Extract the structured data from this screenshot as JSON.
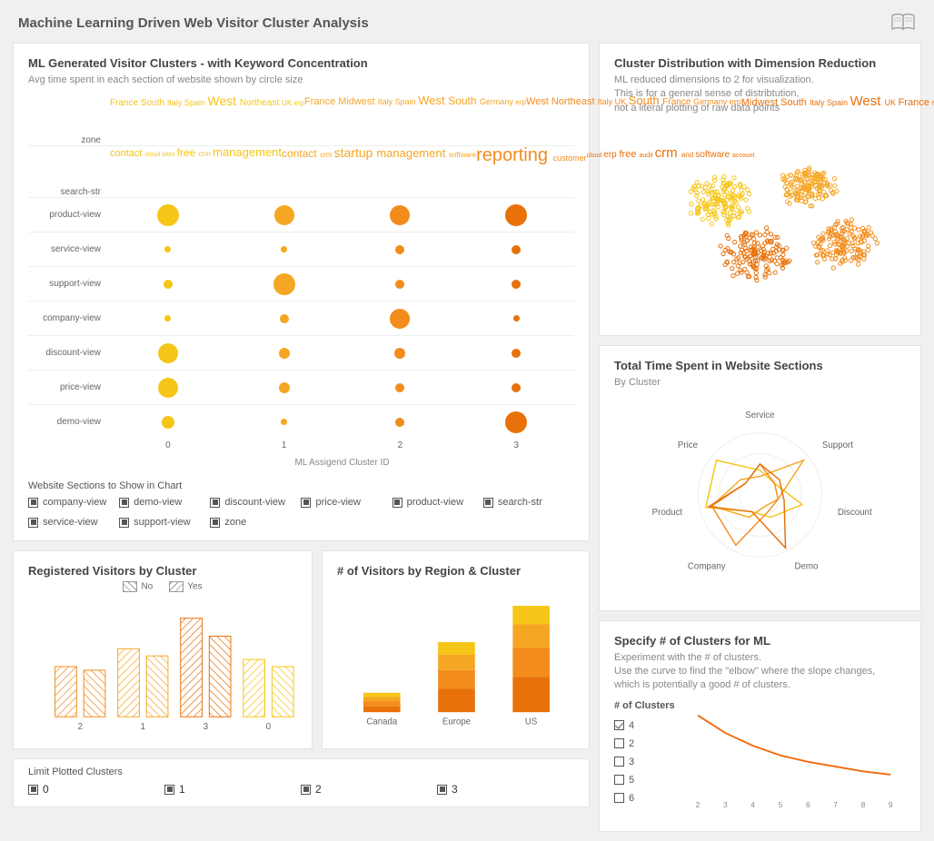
{
  "page": {
    "title": "Machine Learning Driven Web Visitor Cluster Analysis"
  },
  "colors": {
    "cluster": [
      "#f5c518",
      "#f5a623",
      "#f28c1b",
      "#e8710a"
    ],
    "grid": "#e0e0e0",
    "text": "#666666"
  },
  "bubble": {
    "title": "ML Generated Visitor Clusters - with Keyword Concentration",
    "subtitle": "Avg time spent in each section of website shown by circle size",
    "cluster_ids": [
      "0",
      "1",
      "2",
      "3"
    ],
    "axis_label": "ML Assigend Cluster ID",
    "word_rows": [
      {
        "label": "zone",
        "clouds": [
          [
            [
              "France",
              10
            ],
            [
              "South",
              10
            ],
            [
              "Italy",
              9
            ],
            [
              "Spain",
              9
            ],
            [
              "West",
              14
            ],
            [
              "Northeast",
              10
            ],
            [
              "UK",
              8
            ],
            [
              "erp",
              8
            ],
            [
              "contact",
              11
            ],
            [
              "cloud",
              7
            ],
            [
              "sites",
              7
            ],
            [
              "free",
              12
            ],
            [
              "crm",
              8
            ],
            [
              "management",
              13
            ]
          ],
          [
            [
              "France",
              11
            ],
            [
              "Midwest",
              11
            ],
            [
              "Italy",
              9
            ],
            [
              "Spain",
              9
            ],
            [
              "West",
              13
            ],
            [
              "South",
              12
            ],
            [
              "Germany",
              9
            ],
            [
              "erp",
              8
            ],
            [
              "contact",
              12
            ],
            [
              "crm",
              8
            ],
            [
              "startup",
              14
            ],
            [
              "management",
              13
            ],
            [
              "software",
              8
            ]
          ],
          [
            [
              "West",
              11
            ],
            [
              "Northeast",
              11
            ],
            [
              "Italy",
              9
            ],
            [
              "UK",
              9
            ],
            [
              "South",
              13
            ],
            [
              "France",
              10
            ],
            [
              "Germany",
              9
            ],
            [
              "erp",
              9
            ],
            [
              "reporting",
              20
            ],
            [
              "customer",
              9
            ]
          ],
          [
            [
              "Midwest",
              11
            ],
            [
              "South",
              11
            ],
            [
              "Italy",
              9
            ],
            [
              "Spain",
              9
            ],
            [
              "West",
              15
            ],
            [
              "UK",
              9
            ],
            [
              "France",
              11
            ],
            [
              "Northeast",
              7
            ],
            [
              "cloud",
              7
            ],
            [
              "erp",
              10
            ],
            [
              "free",
              11
            ],
            [
              "audit",
              7
            ],
            [
              "crm",
              15
            ],
            [
              "and",
              8
            ],
            [
              "software",
              10
            ],
            [
              "account",
              7
            ]
          ]
        ]
      },
      {
        "label": "search-str",
        "clouds": []
      }
    ],
    "rows": [
      {
        "label": "product-view",
        "sizes": [
          24,
          22,
          22,
          24
        ]
      },
      {
        "label": "service-view",
        "sizes": [
          7,
          7,
          10,
          10
        ]
      },
      {
        "label": "support-view",
        "sizes": [
          10,
          24,
          10,
          10
        ]
      },
      {
        "label": "company-view",
        "sizes": [
          7,
          10,
          22,
          7
        ]
      },
      {
        "label": "discount-view",
        "sizes": [
          22,
          12,
          12,
          10
        ]
      },
      {
        "label": "price-view",
        "sizes": [
          22,
          12,
          10,
          10
        ]
      },
      {
        "label": "demo-view",
        "sizes": [
          14,
          7,
          10,
          24
        ]
      }
    ],
    "filter_title": "Website Sections to Show in Chart",
    "filters": [
      "company-view",
      "demo-view",
      "discount-view",
      "price-view",
      "product-view",
      "search-str",
      "service-view",
      "support-view",
      "zone"
    ]
  },
  "scatter": {
    "title": "Cluster Distribution with Dimension Reduction",
    "subtitle": "ML reduced dimensions to 2 for visualization.\nThis is for a general sense of distribtution,\nnot a literal plotting of raw data points",
    "n_per_cluster": 150,
    "centers": [
      [
        120,
        70
      ],
      [
        220,
        55
      ],
      [
        160,
        130
      ],
      [
        260,
        120
      ]
    ],
    "spread": [
      35,
      30,
      40,
      35
    ],
    "colors": [
      "#f5c518",
      "#f5a623",
      "#e8710a",
      "#f28c1b"
    ]
  },
  "radar": {
    "title": "Total Time Spent in Website Sections",
    "subtitle": "By Cluster",
    "axes": [
      "Service",
      "Support",
      "Discount",
      "Demo",
      "Company",
      "Product",
      "Price"
    ],
    "series": [
      {
        "color": "#f5c518",
        "values": [
          0.4,
          0.3,
          0.7,
          0.4,
          0.3,
          0.9,
          0.9
        ]
      },
      {
        "color": "#f5a623",
        "values": [
          0.3,
          0.9,
          0.3,
          0.2,
          0.4,
          0.8,
          0.4
        ]
      },
      {
        "color": "#f28c1b",
        "values": [
          0.5,
          0.3,
          0.3,
          0.3,
          0.9,
          0.8,
          0.3
        ]
      },
      {
        "color": "#e8710a",
        "values": [
          0.5,
          0.4,
          0.4,
          0.95,
          0.3,
          0.85,
          0.3
        ]
      }
    ]
  },
  "registered": {
    "title": "Registered Visitors by Cluster",
    "legend": [
      "No",
      "Yes"
    ],
    "categories": [
      "2",
      "1",
      "3",
      "0"
    ],
    "no": [
      28,
      38,
      55,
      32
    ],
    "yes": [
      26,
      34,
      45,
      28
    ],
    "colors": [
      "#f28c1b",
      "#f5a623",
      "#e8710a",
      "#f5c518"
    ],
    "ymax": 60
  },
  "region": {
    "title": "# of Visitors by Region & Cluster",
    "categories": [
      "Canada",
      "Europe",
      "US"
    ],
    "stacks": [
      [
        7,
        6,
        5,
        5
      ],
      [
        28,
        22,
        18,
        15
      ],
      [
        42,
        34,
        28,
        22
      ]
    ],
    "colors": [
      "#e8710a",
      "#f28c1b",
      "#f5a623",
      "#f5c518"
    ],
    "ymax": 130
  },
  "limit": {
    "title": "Limit Plotted Clusters",
    "options": [
      "0",
      "1",
      "2",
      "3"
    ]
  },
  "elbow": {
    "title": "Specify # of Clusters for ML",
    "subtitle": "Experiment with the # of clusters.\nUse the curve to find the \"elbow\" where the slope changes,\nwhich is potentially a good # of clusters.",
    "opt_title": "# of Clusters",
    "options": [
      "4",
      "2",
      "3",
      "5",
      "6"
    ],
    "selected": "4",
    "x": [
      2,
      3,
      4,
      5,
      6,
      7,
      8,
      9
    ],
    "y": [
      100,
      78,
      62,
      50,
      42,
      36,
      30,
      26
    ],
    "ymax": 100,
    "color": "#f26a0a"
  }
}
